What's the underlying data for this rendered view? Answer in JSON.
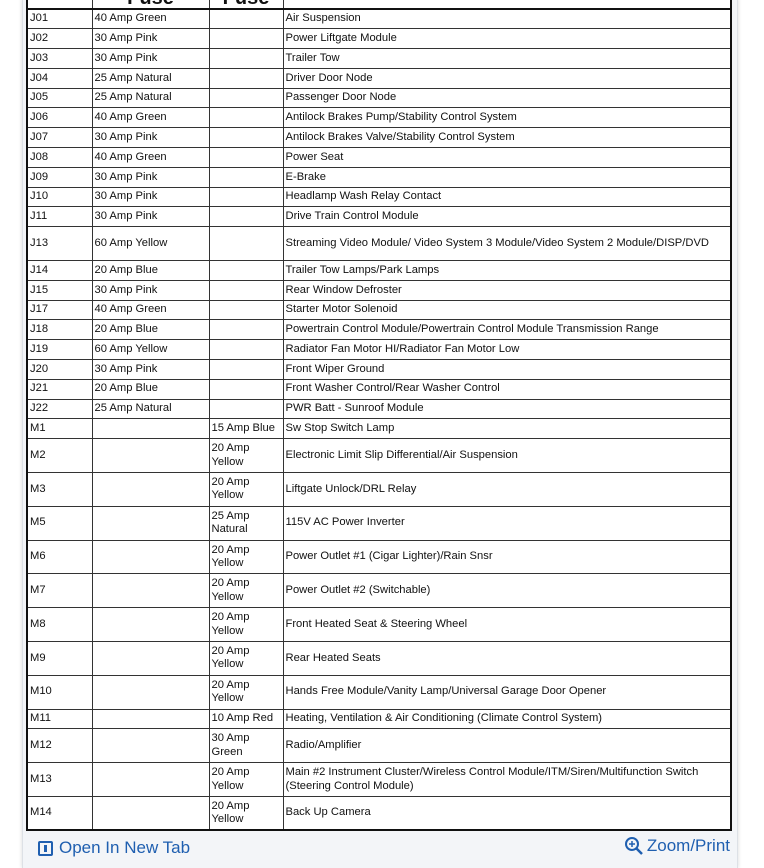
{
  "table": {
    "headers": [
      "",
      "Fuse",
      "Fuse",
      ""
    ],
    "rows": [
      [
        "J01",
        "40 Amp Green",
        "",
        "Air Suspension"
      ],
      [
        "J02",
        "30 Amp Pink",
        "",
        "Power Liftgate Module"
      ],
      [
        "J03",
        "30 Amp Pink",
        "",
        "Trailer Tow"
      ],
      [
        "J04",
        "25 Amp Natural",
        "",
        "Driver Door Node"
      ],
      [
        "J05",
        "25 Amp Natural",
        "",
        "Passenger Door Node"
      ],
      [
        "J06",
        "40 Amp Green",
        "",
        "Antilock Brakes Pump/Stability Control System"
      ],
      [
        "J07",
        "30 Amp Pink",
        "",
        "Antilock Brakes Valve/Stability Control System"
      ],
      [
        "J08",
        "40 Amp Green",
        "",
        "Power Seat"
      ],
      [
        "J09",
        "30 Amp Pink",
        "",
        "E-Brake"
      ],
      [
        "J10",
        "30 Amp Pink",
        "",
        "Headlamp Wash Relay Contact"
      ],
      [
        "J11",
        "30 Amp Pink",
        "",
        "Drive Train Control Module"
      ],
      [
        "J13",
        "60 Amp Yellow",
        "",
        "Streaming Video Module/ Video System 3 Module/Video System 2 Module/DISP/DVD"
      ],
      [
        "J14",
        "20 Amp Blue",
        "",
        "Trailer Tow Lamps/Park Lamps"
      ],
      [
        "J15",
        "30 Amp Pink",
        "",
        "Rear Window Defroster"
      ],
      [
        "J17",
        "40 Amp Green",
        "",
        "Starter Motor Solenoid"
      ],
      [
        "J18",
        "20 Amp Blue",
        "",
        "Powertrain Control Module/Powertrain Control Module Transmission Range"
      ],
      [
        "J19",
        "60 Amp Yellow",
        "",
        "Radiator Fan Motor HI/Radiator Fan Motor Low"
      ],
      [
        "J20",
        "30 Amp Pink",
        "",
        "Front Wiper Ground"
      ],
      [
        "J21",
        "20 Amp Blue",
        "",
        "Front Washer Control/Rear Washer Control"
      ],
      [
        "J22",
        "25 Amp Natural",
        "",
        "PWR Batt - Sunroof Module"
      ],
      [
        "M1",
        "",
        "15 Amp Blue",
        "Sw Stop Switch Lamp"
      ],
      [
        "M2",
        "",
        "20 Amp Yellow",
        "Electronic Limit Slip Differential/Air Suspension"
      ],
      [
        "M3",
        "",
        "20 Amp Yellow",
        "Liftgate Unlock/DRL Relay"
      ],
      [
        "M5",
        "",
        "25 Amp Natural",
        "115V AC Power Inverter"
      ],
      [
        "M6",
        "",
        "20 Amp Yellow",
        "Power Outlet #1 (Cigar Lighter)/Rain Snsr"
      ],
      [
        "M7",
        "",
        "20 Amp Yellow",
        "Power Outlet #2 (Switchable)"
      ],
      [
        "M8",
        "",
        "20 Amp Yellow",
        "Front Heated Seat & Steering Wheel"
      ],
      [
        "M9",
        "",
        "20 Amp Yellow",
        "Rear Heated Seats"
      ],
      [
        "M10",
        "",
        "20 Amp Yellow",
        "Hands Free Module/Vanity Lamp/Universal Garage Door Opener"
      ],
      [
        "M11",
        "",
        "10 Amp Red",
        "Heating, Ventilation & Air Conditioning (Climate Control System)"
      ],
      [
        "M12",
        "",
        "30 Amp Green",
        "Radio/Amplifier"
      ],
      [
        "M13",
        "",
        "20 Amp Yellow",
        "Main #2 Instrument Cluster/Wireless Control Module/ITM/Siren/Multifunction Switch (Steering Control Module)"
      ],
      [
        "M14",
        "",
        "20 Amp Yellow",
        "Back Up Camera"
      ]
    ],
    "tall_rows": [
      "J13",
      "M2",
      "M3",
      "M5",
      "M6",
      "M7",
      "M8",
      "M9",
      "M10",
      "M12",
      "M13",
      "M14"
    ]
  },
  "footer": {
    "open_label": "Open In New Tab",
    "zoom_label": "Zoom/Print",
    "open_icon": "open-new-tab-icon",
    "zoom_icon": "zoom-in-icon",
    "link_color": "#1f5fb0"
  }
}
